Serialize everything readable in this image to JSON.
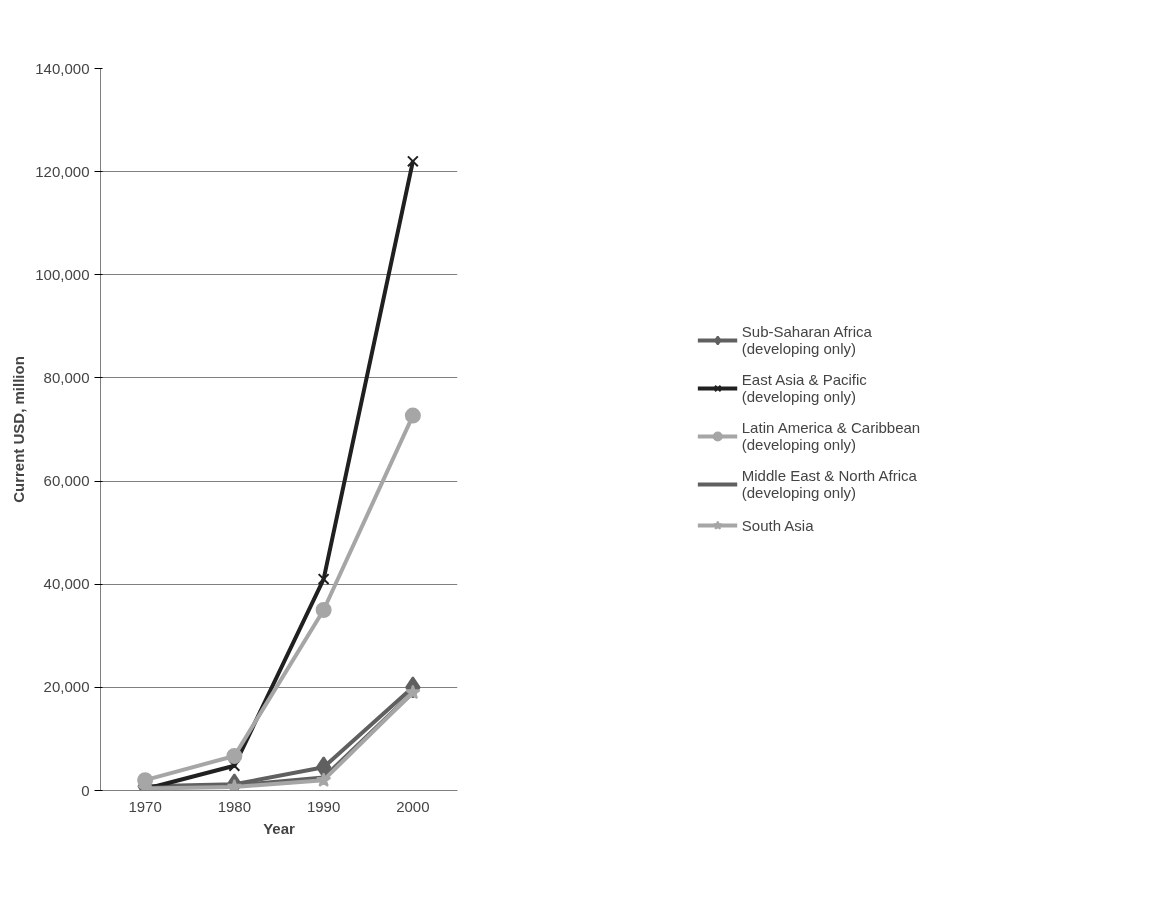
{
  "chart_data": {
    "type": "line",
    "xlabel": "Year",
    "ylabel": "Current USD, million",
    "categories": [
      "1970",
      "1980",
      "1990",
      "2000"
    ],
    "series": [
      {
        "name": "Sub-Saharan Africa\n(developing only)",
        "color": "#606060",
        "marker": "diamond",
        "values": [
          800,
          1200,
          4500,
          20000
        ]
      },
      {
        "name": "East Asia & Pacific\n(developing only)",
        "color": "#202020",
        "marker": "cross",
        "values": [
          300,
          4800,
          41000,
          122000
        ]
      },
      {
        "name": "Latin America & Caribbean\n(developing only)",
        "color": "#a6a6a6",
        "marker": "circle",
        "values": [
          2000,
          6700,
          35000,
          72700
        ]
      },
      {
        "name": "Middle East & North Africa\n(developing only)",
        "color": "#606060",
        "marker": "none",
        "values": [
          500,
          1000,
          2500,
          19000
        ]
      },
      {
        "name": "South Asia",
        "color": "#a6a6a6",
        "marker": "star",
        "values": [
          400,
          700,
          2000,
          19000
        ]
      }
    ],
    "ylim": [
      0,
      140000
    ],
    "yticks": [
      0,
      {
        "value": 20000,
        "label": "20,000"
      },
      {
        "value": 40000,
        "label": "40,000"
      },
      {
        "value": 60000,
        "label": "60,000"
      },
      {
        "value": 80000,
        "label": "80,000"
      },
      {
        "value": 100000,
        "label": "100,000"
      },
      {
        "value": 120000,
        "label": "120,000"
      },
      {
        "value": 140000,
        "label": "140,000"
      }
    ],
    "grid": "y",
    "legend": "right"
  }
}
